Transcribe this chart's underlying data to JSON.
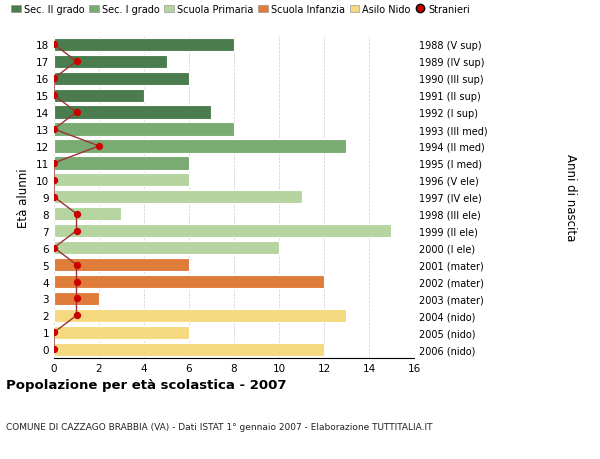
{
  "ages": [
    18,
    17,
    16,
    15,
    14,
    13,
    12,
    11,
    10,
    9,
    8,
    7,
    6,
    5,
    4,
    3,
    2,
    1,
    0
  ],
  "bar_values": [
    8,
    5,
    6,
    4,
    7,
    8,
    13,
    6,
    6,
    11,
    3,
    15,
    10,
    6,
    12,
    2,
    13,
    6,
    12
  ],
  "bar_colors": [
    "#4a7c4e",
    "#4a7c4e",
    "#4a7c4e",
    "#4a7c4e",
    "#4a7c4e",
    "#7aab72",
    "#7aab72",
    "#7aab72",
    "#b5d4a0",
    "#b5d4a0",
    "#b5d4a0",
    "#b5d4a0",
    "#b5d4a0",
    "#e07c3a",
    "#e07c3a",
    "#e07c3a",
    "#f5d980",
    "#f5d980",
    "#f5d980"
  ],
  "right_labels": [
    "1988 (V sup)",
    "1989 (IV sup)",
    "1990 (III sup)",
    "1991 (II sup)",
    "1992 (I sup)",
    "1993 (III med)",
    "1994 (II med)",
    "1995 (I med)",
    "1996 (V ele)",
    "1997 (IV ele)",
    "1998 (III ele)",
    "1999 (II ele)",
    "2000 (I ele)",
    "2001 (mater)",
    "2002 (mater)",
    "2003 (mater)",
    "2004 (nido)",
    "2005 (nido)",
    "2006 (nido)"
  ],
  "stranieri_x": [
    0,
    1,
    0,
    0,
    1,
    0,
    2,
    0,
    0,
    0,
    1,
    1,
    0,
    1,
    1,
    1,
    1,
    0,
    0
  ],
  "xlim": [
    0,
    16
  ],
  "ylim": [
    -0.5,
    18.5
  ],
  "ylabel": "Età alunni",
  "right_ylabel": "Anni di nascita",
  "title": "Popolazione per età scolastica - 2007",
  "subtitle": "COMUNE DI CAZZAGO BRABBIA (VA) - Dati ISTAT 1° gennaio 2007 - Elaborazione TUTTITALIA.IT",
  "legend_items": [
    {
      "label": "Sec. II grado",
      "color": "#4a7c4e"
    },
    {
      "label": "Sec. I grado",
      "color": "#7aab72"
    },
    {
      "label": "Scuola Primaria",
      "color": "#b5d4a0"
    },
    {
      "label": "Scuola Infanzia",
      "color": "#e07c3a"
    },
    {
      "label": "Asilo Nido",
      "color": "#f5d980"
    },
    {
      "label": "Stranieri",
      "color": "#cc0000"
    }
  ],
  "bg_color": "#ffffff",
  "grid_color": "#cccccc",
  "bar_edge_color": "#ffffff",
  "stranieri_line_color": "#993333",
  "stranieri_dot_color": "#cc0000"
}
